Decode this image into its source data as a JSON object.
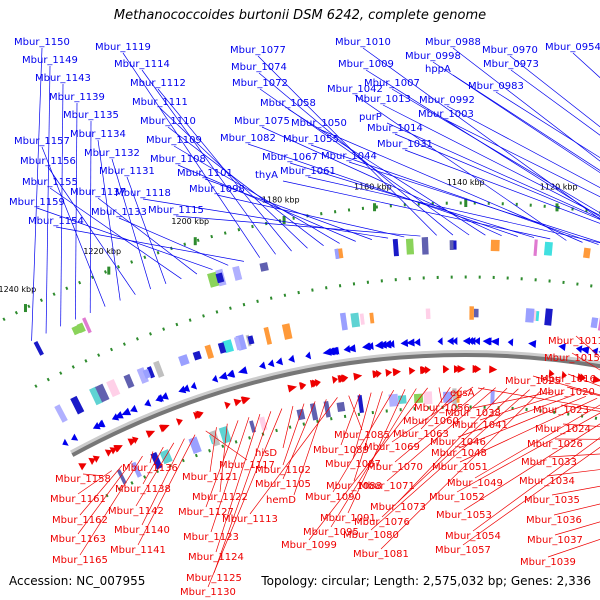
{
  "title": "Methanococcoides burtonii DSM 6242, complete genome",
  "footer": {
    "accession": "Accession: NC_007955",
    "summary": "Topology: circular; Length: 2,575,032 bp; Genes: 2,336"
  },
  "colors": {
    "forward_strand": "#0000ee",
    "reverse_strand": "#ee0000",
    "backbone": "#777777",
    "tick_dots": "#2e8b2e"
  },
  "scale_labels": [
    "1040 kbp",
    "1060 kbp",
    "1080 kbp",
    "1100 kbp",
    "1120 kbp",
    "1140 kbp",
    "1160 kbp",
    "1180 kbp",
    "1200 kbp",
    "1220 kbp",
    "1240 kbp"
  ],
  "top_labels": [
    "Mbur_1150",
    "Mbur_1149",
    "Mbur_1143",
    "Mbur_1139",
    "Mbur_1135",
    "Mbur_1157",
    "Mbur_1134",
    "Mbur_1156",
    "Mbur_1132",
    "Mbur_1131",
    "Mbur_1155",
    "Mbur_1137",
    "Mbur_1159",
    "Mbur_1133",
    "Mbur_1154",
    "Mbur_1119",
    "Mbur_1114",
    "Mbur_1112",
    "Mbur_1111",
    "Mbur_1110",
    "Mbur_1109",
    "Mbur_1108",
    "Mbur_1101",
    "Mbur_1118",
    "Mbur_1098",
    "Mbur_1115",
    "Mbur_1077",
    "Mbur_1074",
    "Mbur_1072",
    "Mbur_1058",
    "Mbur_1075",
    "Mbur_1082",
    "Mbur_1067",
    "thyA",
    "Mbur_1042",
    "Mbur_1050",
    "Mbur_1055",
    "Mbur_1044",
    "Mbur_1061",
    "Mbur_1010",
    "Mbur_1009",
    "Mbur_1007",
    "Mbur_1013",
    "purP",
    "Mbur_1014",
    "Mbur_1031",
    "Mbur_0988",
    "Mbur_0998",
    "hppA",
    "Mbur_1003",
    "Mbur_0992",
    "Mbur_0970",
    "Mbur_0973",
    "Mbur_0983",
    "Mbur_0954"
  ],
  "bottom_labels": [
    "Mbur_1158",
    "Mbur_1161",
    "Mbur_1162",
    "Mbur_1163",
    "Mbur_1165",
    "Mbur_1136",
    "Mbur_1138",
    "Mbur_1142",
    "Mbur_1140",
    "Mbur_1141",
    "Mbur_1117",
    "Mbur_1121",
    "Mbur_1122",
    "Mbur_1127",
    "Mbur_1123",
    "Mbur_1124",
    "Mbur_1125",
    "Mbur_1130",
    "hisD",
    "Mbur_1102",
    "Mbur_1105",
    "hemD",
    "Mbur_1113",
    "Mbur_1085",
    "Mbur_1089",
    "Mbur_1087",
    "Mbur_1088",
    "Mbur_1090",
    "Mbur_1091",
    "Mbur_1095",
    "Mbur_1099",
    "Mbur_1056",
    "Mbur_1060",
    "Mbur_1063",
    "Mbur_1069",
    "Mbur_1070",
    "Mbur_1071",
    "Mbur_1073",
    "Mbur_1076",
    "Mbur_1080",
    "Mbur_1081",
    "Mbur_1038",
    "Mbur_1041",
    "Mbur_1046",
    "Mbur_1048",
    "Mbur_1051",
    "Mbur_1049",
    "Mbur_1052",
    "Mbur_1053",
    "Mbur_1054",
    "Mbur_1057",
    "Mbur_1011",
    "Mbur_1015",
    "Mbur_1016",
    "Mbur_1020",
    "Mbur_1025",
    "egsA",
    "Mbur_1023",
    "Mbur_1024",
    "Mbur_1026",
    "Mbur_1033",
    "Mbur_1034",
    "Mbur_1035",
    "Mbur_1036",
    "Mbur_1037",
    "Mbur_1039"
  ]
}
